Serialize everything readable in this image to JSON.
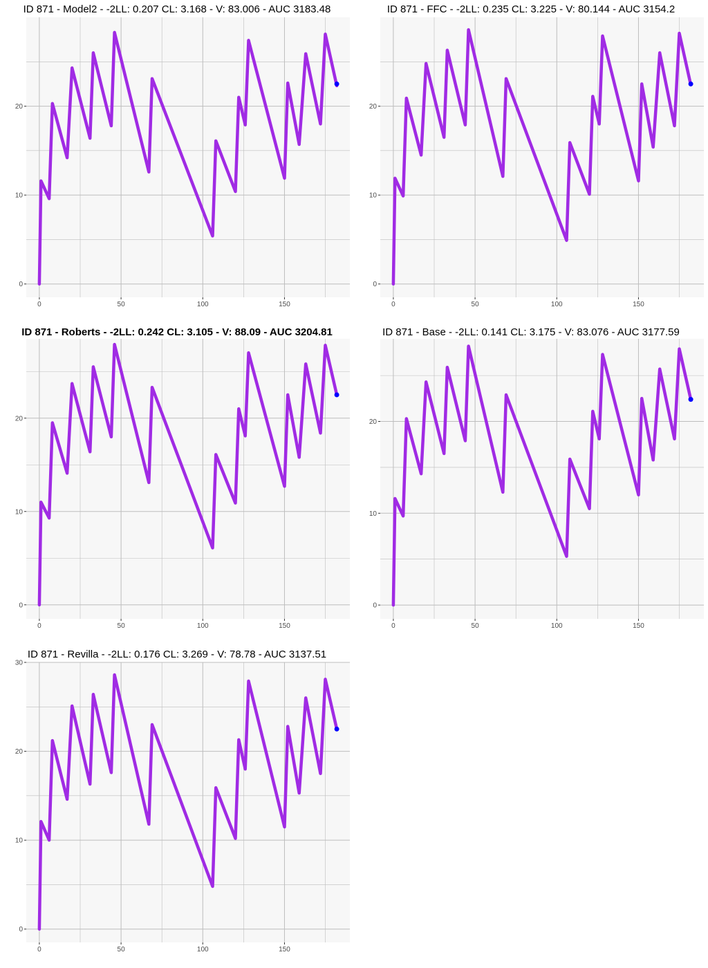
{
  "colors": {
    "panel_bg": "#f7f7f7",
    "grid": "#bdbdbd",
    "line": "#a02be4",
    "point": "#0000ff"
  },
  "chart_data": [
    {
      "type": "line",
      "title": "ID 871 - Model2 - -2LL: 0.207 CL: 3.168 - V: 83.006 - AUC 3183.48",
      "title_bold": false,
      "xlim": [
        -8,
        190
      ],
      "ylim": [
        -1.5,
        30
      ],
      "xticks": [
        0,
        50,
        100,
        150
      ],
      "yticks": [
        0,
        10,
        20
      ],
      "grid": true,
      "series": [
        {
          "x": [
            0,
            1,
            6,
            8,
            17,
            20,
            31,
            33,
            44,
            46,
            67,
            69,
            106,
            108,
            120,
            122,
            126,
            128,
            150,
            152,
            159,
            163,
            172,
            175,
            182
          ],
          "y": [
            0,
            11.6,
            9.6,
            20.3,
            14.2,
            24.3,
            16.4,
            26.0,
            17.8,
            28.3,
            12.6,
            23.1,
            5.4,
            16.1,
            10.4,
            21.0,
            17.9,
            27.4,
            11.9,
            22.6,
            15.7,
            25.9,
            18.0,
            28.1,
            22.3
          ]
        }
      ],
      "observed": [
        {
          "x": 182,
          "y": 22.5
        }
      ]
    },
    {
      "type": "line",
      "title": "ID 871 - FFC - -2LL: 0.235 CL: 3.225 - V: 80.144 - AUC 3154.2",
      "title_bold": false,
      "xlim": [
        -8,
        190
      ],
      "ylim": [
        -1.5,
        30
      ],
      "xticks": [
        0,
        50,
        100,
        150
      ],
      "yticks": [
        0,
        10,
        20
      ],
      "grid": true,
      "series": [
        {
          "x": [
            0,
            1,
            6,
            8,
            17,
            20,
            31,
            33,
            44,
            46,
            67,
            69,
            106,
            108,
            120,
            122,
            126,
            128,
            150,
            152,
            159,
            163,
            172,
            175,
            182
          ],
          "y": [
            0,
            11.9,
            9.9,
            20.9,
            14.5,
            24.8,
            16.5,
            26.3,
            17.9,
            28.6,
            12.1,
            23.1,
            4.9,
            15.9,
            10.1,
            21.1,
            18.0,
            27.9,
            11.6,
            22.5,
            15.4,
            26.0,
            17.8,
            28.2,
            22.4
          ]
        }
      ],
      "observed": [
        {
          "x": 182,
          "y": 22.5
        }
      ]
    },
    {
      "type": "line",
      "title": "ID 871 - Roberts - -2LL: 0.242 CL: 3.105 - V: 88.09 - AUC 3204.81",
      "title_bold": true,
      "xlim": [
        -8,
        190
      ],
      "ylim": [
        -1.5,
        28.5
      ],
      "xticks": [
        0,
        50,
        100,
        150
      ],
      "yticks": [
        0,
        10,
        20
      ],
      "grid": true,
      "series": [
        {
          "x": [
            0,
            1,
            6,
            8,
            17,
            20,
            31,
            33,
            44,
            46,
            67,
            69,
            106,
            108,
            120,
            122,
            126,
            128,
            150,
            152,
            159,
            163,
            172,
            175,
            182
          ],
          "y": [
            0,
            11.0,
            9.3,
            19.5,
            14.1,
            23.7,
            16.4,
            25.5,
            18.0,
            27.9,
            13.1,
            23.3,
            6.1,
            16.1,
            10.9,
            21.0,
            18.1,
            27.0,
            12.7,
            22.5,
            15.8,
            25.8,
            18.4,
            27.8,
            22.5
          ]
        }
      ],
      "observed": [
        {
          "x": 182,
          "y": 22.5
        }
      ]
    },
    {
      "type": "line",
      "title": "ID 871 - Base - -2LL: 0.141 CL: 3.175 - V: 83.076 - AUC 3177.59",
      "title_bold": false,
      "xlim": [
        -8,
        190
      ],
      "ylim": [
        -1.5,
        29
      ],
      "xticks": [
        0,
        50,
        100,
        150
      ],
      "yticks": [
        0,
        10,
        20
      ],
      "grid": true,
      "series": [
        {
          "x": [
            0,
            1,
            6,
            8,
            17,
            20,
            31,
            33,
            44,
            46,
            67,
            69,
            106,
            108,
            120,
            122,
            126,
            128,
            150,
            152,
            159,
            163,
            172,
            175,
            182
          ],
          "y": [
            0,
            11.6,
            9.7,
            20.3,
            14.3,
            24.3,
            16.5,
            25.9,
            17.9,
            28.2,
            12.3,
            22.9,
            5.3,
            15.9,
            10.5,
            21.1,
            18.1,
            27.3,
            12.0,
            22.5,
            15.8,
            25.7,
            18.1,
            27.9,
            22.4
          ]
        }
      ],
      "observed": [
        {
          "x": 182,
          "y": 22.4
        }
      ]
    },
    {
      "type": "line",
      "title": "ID 871 - Revilla - -2LL: 0.176 CL: 3.269 - V: 78.78 - AUC 3137.51",
      "title_bold": false,
      "xlim": [
        -8,
        190
      ],
      "ylim": [
        -1.5,
        30
      ],
      "xticks": [
        0,
        50,
        100,
        150
      ],
      "yticks": [
        0,
        10,
        20,
        30
      ],
      "grid": true,
      "series": [
        {
          "x": [
            0,
            1,
            6,
            8,
            17,
            20,
            31,
            33,
            44,
            46,
            67,
            69,
            106,
            108,
            120,
            122,
            126,
            128,
            150,
            152,
            159,
            163,
            172,
            175,
            182
          ],
          "y": [
            0,
            12.1,
            10.0,
            21.2,
            14.6,
            25.1,
            16.3,
            26.4,
            17.6,
            28.6,
            11.8,
            23.0,
            4.8,
            15.9,
            10.2,
            21.3,
            18.0,
            27.9,
            11.5,
            22.8,
            15.3,
            26.0,
            17.5,
            28.1,
            22.5
          ]
        }
      ],
      "observed": [
        {
          "x": 182,
          "y": 22.5
        }
      ]
    }
  ]
}
